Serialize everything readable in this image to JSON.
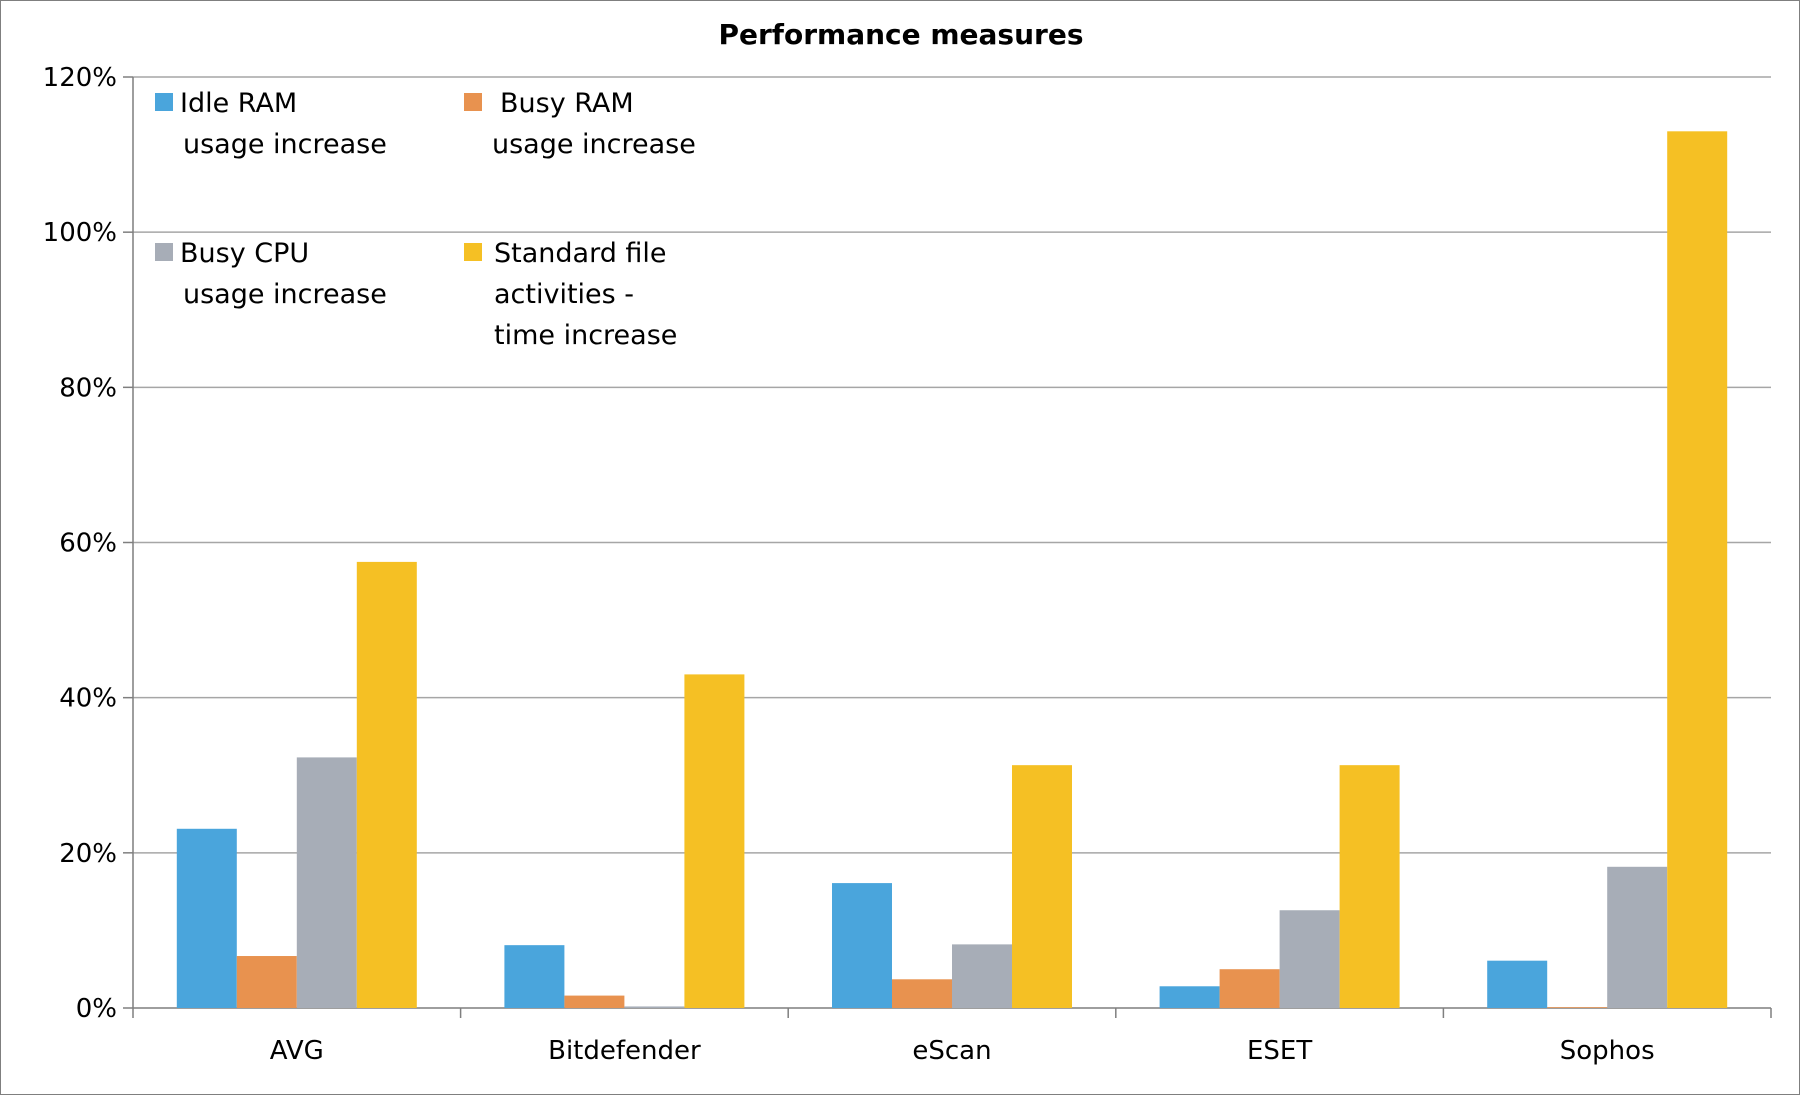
{
  "chart_data": {
    "type": "bar",
    "title": "Performance measures",
    "xlabel": "",
    "ylabel": "",
    "ylim": [
      0,
      1.2
    ],
    "yticks": [
      "0%",
      "20%",
      "40%",
      "60%",
      "80%",
      "100%",
      "120%"
    ],
    "grid": true,
    "legend_position": "top-left",
    "categories": [
      "AVG",
      "Bitdefender",
      "eScan",
      "ESET",
      "Sophos"
    ],
    "series": [
      {
        "name": "Idle RAM usage increase",
        "legend_lines": [
          "Idle RAM",
          "usage increase"
        ],
        "color": "#4aa5dc",
        "values": [
          0.231,
          0.081,
          0.161,
          0.028,
          0.061
        ]
      },
      {
        "name": "Busy RAM usage increase",
        "legend_lines": [
          "Busy RAM",
          "usage increase"
        ],
        "color": "#e8924f",
        "values": [
          0.067,
          0.016,
          0.037,
          0.05,
          0.001
        ]
      },
      {
        "name": "Busy CPU usage increase",
        "legend_lines": [
          "Busy CPU",
          "usage increase"
        ],
        "color": "#a7adb7",
        "values": [
          0.323,
          0.002,
          0.082,
          0.126,
          0.182
        ]
      },
      {
        "name": "Standard file activities - time increase",
        "legend_lines": [
          "Standard file",
          "activities -",
          "time increase"
        ],
        "color": "#f5c024",
        "values": [
          0.575,
          0.43,
          0.313,
          0.313,
          1.13
        ]
      }
    ]
  }
}
